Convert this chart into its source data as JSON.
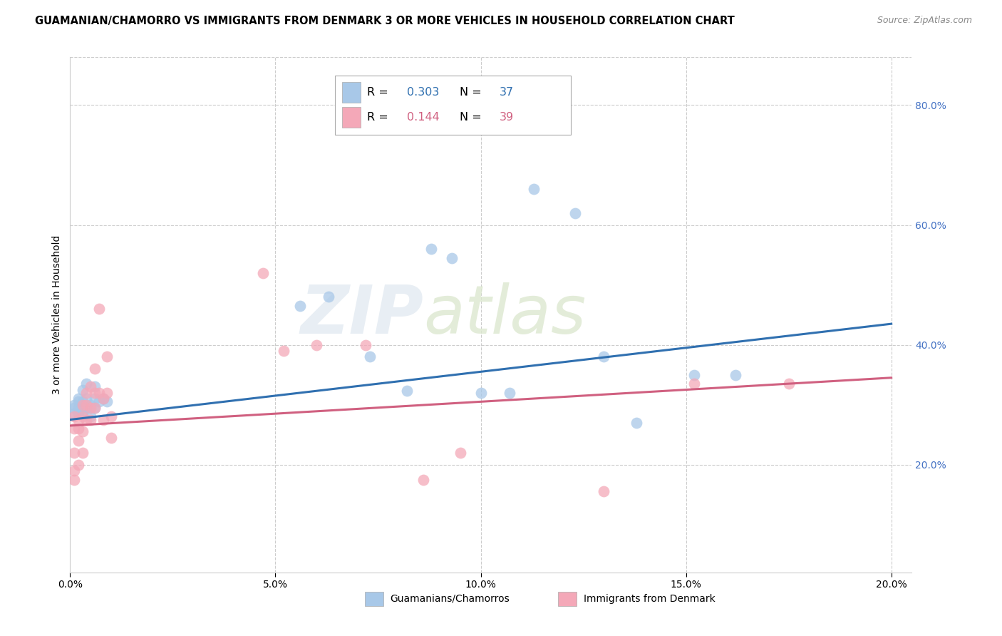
{
  "title": "GUAMANIAN/CHAMORRO VS IMMIGRANTS FROM DENMARK 3 OR MORE VEHICLES IN HOUSEHOLD CORRELATION CHART",
  "source": "Source: ZipAtlas.com",
  "ylabel": "3 or more Vehicles in Household",
  "legend_R1": "0.303",
  "legend_N1": "37",
  "legend_R2": "0.144",
  "legend_N2": "39",
  "legend_label1": "Guamanians/Chamorros",
  "legend_label2": "Immigrants from Denmark",
  "color_blue": "#a8c8e8",
  "color_pink": "#f4a8b8",
  "color_blue_line": "#3070b0",
  "color_pink_line": "#d06080",
  "color_blue_text": "#3070b0",
  "color_pink_text": "#d06080",
  "color_right_axis": "#4472C4",
  "watermark_zip": "ZIP",
  "watermark_atlas": "atlas",
  "grid_color": "#cccccc",
  "background_color": "#ffffff",
  "title_fontsize": 10.5,
  "axis_label_fontsize": 10,
  "tick_fontsize": 10,
  "xlim": [
    0.0,
    0.205
  ],
  "ylim": [
    0.02,
    0.88
  ],
  "x_ticks": [
    0.0,
    0.05,
    0.1,
    0.15,
    0.2
  ],
  "x_tick_labels": [
    "0.0%",
    "5.0%",
    "10.0%",
    "15.0%",
    "20.0%"
  ],
  "y_ticks_right": [
    0.2,
    0.4,
    0.6,
    0.8
  ],
  "y_tick_labels_right": [
    "20.0%",
    "40.0%",
    "60.0%",
    "80.0%"
  ],
  "blue_x": [
    0.001,
    0.001,
    0.001,
    0.002,
    0.002,
    0.002,
    0.002,
    0.003,
    0.003,
    0.003,
    0.003,
    0.004,
    0.004,
    0.004,
    0.005,
    0.005,
    0.005,
    0.006,
    0.006,
    0.006,
    0.007,
    0.056,
    0.063,
    0.073,
    0.082,
    0.088,
    0.093,
    0.1,
    0.107,
    0.113,
    0.123,
    0.13,
    0.138,
    0.152,
    0.162,
    0.008,
    0.009
  ],
  "blue_y": [
    0.3,
    0.295,
    0.285,
    0.31,
    0.295,
    0.305,
    0.285,
    0.305,
    0.295,
    0.285,
    0.325,
    0.31,
    0.295,
    0.335,
    0.3,
    0.295,
    0.28,
    0.31,
    0.33,
    0.295,
    0.305,
    0.465,
    0.48,
    0.38,
    0.323,
    0.56,
    0.545,
    0.32,
    0.32,
    0.66,
    0.62,
    0.38,
    0.27,
    0.35,
    0.35,
    0.31,
    0.305
  ],
  "pink_x": [
    0.001,
    0.001,
    0.001,
    0.001,
    0.001,
    0.002,
    0.002,
    0.002,
    0.002,
    0.003,
    0.003,
    0.003,
    0.003,
    0.004,
    0.004,
    0.004,
    0.005,
    0.005,
    0.005,
    0.006,
    0.006,
    0.006,
    0.007,
    0.007,
    0.008,
    0.008,
    0.009,
    0.009,
    0.01,
    0.01,
    0.047,
    0.052,
    0.06,
    0.072,
    0.086,
    0.095,
    0.13,
    0.152,
    0.175
  ],
  "pink_y": [
    0.28,
    0.26,
    0.22,
    0.19,
    0.175,
    0.275,
    0.26,
    0.24,
    0.2,
    0.3,
    0.28,
    0.255,
    0.22,
    0.32,
    0.3,
    0.275,
    0.33,
    0.295,
    0.275,
    0.36,
    0.32,
    0.295,
    0.46,
    0.32,
    0.31,
    0.275,
    0.38,
    0.32,
    0.28,
    0.245,
    0.52,
    0.39,
    0.4,
    0.4,
    0.175,
    0.22,
    0.155,
    0.335,
    0.335
  ]
}
